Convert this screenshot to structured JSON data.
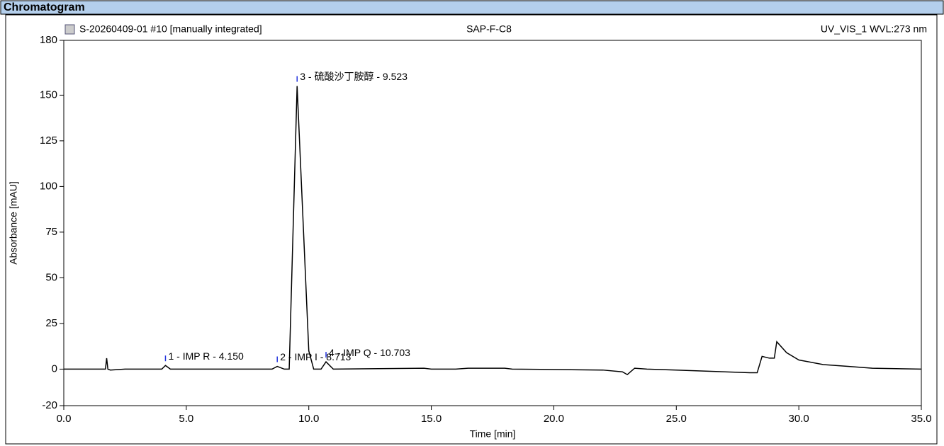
{
  "chart_data": {
    "type": "line",
    "title": "Chromatogram",
    "sample": "S-20260409-01 #10 [manually integrated]",
    "method": "SAP-F-C8",
    "channel": "UV_VIS_1 WVL:273 nm",
    "xlabel": "Time [min]",
    "ylabel": "Absorbance [mAU]",
    "x": [
      0,
      1.7,
      1.75,
      1.8,
      1.9,
      2.5,
      4.0,
      4.15,
      4.35,
      8.5,
      8.713,
      9.0,
      9.2,
      9.523,
      10.0,
      10.2,
      10.5,
      10.703,
      11.0,
      14.7,
      15.0,
      16.0,
      16.5,
      17.0,
      18.0,
      18.3,
      22.0,
      22.8,
      23.0,
      23.3,
      23.8,
      25.0,
      28.0,
      28.3,
      28.5,
      28.8,
      29.0,
      29.1,
      29.5,
      30.0,
      31.0,
      32.0,
      33.0,
      35.0
    ],
    "series": [
      {
        "name": "UV_VIS_1",
        "color": "#000000",
        "values": [
          0,
          0,
          6,
          0,
          -0.5,
          0,
          0,
          2,
          0,
          0,
          1.5,
          0,
          0,
          155,
          10,
          0,
          0,
          4,
          0,
          0.5,
          0,
          0,
          0.5,
          0.5,
          0.5,
          0,
          -0.5,
          -1.5,
          -3,
          0.5,
          0,
          -0.5,
          -2,
          -2,
          7,
          6,
          6,
          15,
          9,
          5,
          2.5,
          1.5,
          0.5,
          0
        ]
      }
    ],
    "annotations": [
      {
        "text": "1 - IMP R - 4.150",
        "x": 4.15
      },
      {
        "text": "2 - IMP I - 8.713",
        "x": 8.713
      },
      {
        "text": "3 - 硫酸沙丁胺醇 - 9.523",
        "x": 9.523
      },
      {
        "text": "4 - IMP Q - 10.703",
        "x": 10.703
      }
    ],
    "xlim": [
      0,
      35
    ],
    "xticks": [
      {
        "value": 0,
        "label": "0.0"
      },
      {
        "value": 5,
        "label": "5.0"
      },
      {
        "value": 10,
        "label": "10.0"
      },
      {
        "value": 15,
        "label": "15.0"
      },
      {
        "value": 20,
        "label": "20.0"
      },
      {
        "value": 25,
        "label": "25.0"
      },
      {
        "value": 30,
        "label": "30.0"
      },
      {
        "value": 35,
        "label": "35.0"
      }
    ],
    "ylim": [
      -20,
      180
    ],
    "yticks": [
      -20,
      0,
      25,
      50,
      75,
      100,
      125,
      150,
      180
    ],
    "grid": false
  }
}
